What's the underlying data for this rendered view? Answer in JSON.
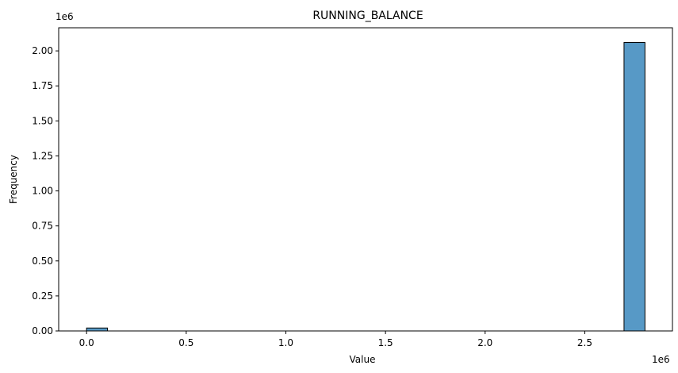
{
  "chart_data": {
    "type": "bar",
    "title": "RUNNING_BALANCE",
    "xlabel": "Value",
    "ylabel": "Frequency",
    "x_offset_text": "1e6",
    "y_offset_text": "1e6",
    "xlim": [
      -0.14,
      2.94
    ],
    "ylim": [
      0,
      2.165
    ],
    "bins": [
      {
        "x0": 0.0,
        "x1": 0.105,
        "value": 0.021
      },
      {
        "x0": 2.697,
        "x1": 2.802,
        "value": 2.06
      }
    ],
    "x_ticks": [
      {
        "value": 0.0,
        "label": "0.0"
      },
      {
        "value": 0.5,
        "label": "0.5"
      },
      {
        "value": 1.0,
        "label": "1.0"
      },
      {
        "value": 1.5,
        "label": "1.5"
      },
      {
        "value": 2.0,
        "label": "2.0"
      },
      {
        "value": 2.5,
        "label": "2.5"
      }
    ],
    "y_ticks": [
      {
        "value": 0.0,
        "label": "0.00"
      },
      {
        "value": 0.25,
        "label": "0.25"
      },
      {
        "value": 0.5,
        "label": "0.50"
      },
      {
        "value": 0.75,
        "label": "0.75"
      },
      {
        "value": 1.0,
        "label": "1.00"
      },
      {
        "value": 1.25,
        "label": "1.25"
      },
      {
        "value": 1.5,
        "label": "1.50"
      },
      {
        "value": 1.75,
        "label": "1.75"
      },
      {
        "value": 2.0,
        "label": "2.00"
      }
    ],
    "bar_color": "#5799c6",
    "edge_color": "#000000",
    "grid": false
  }
}
